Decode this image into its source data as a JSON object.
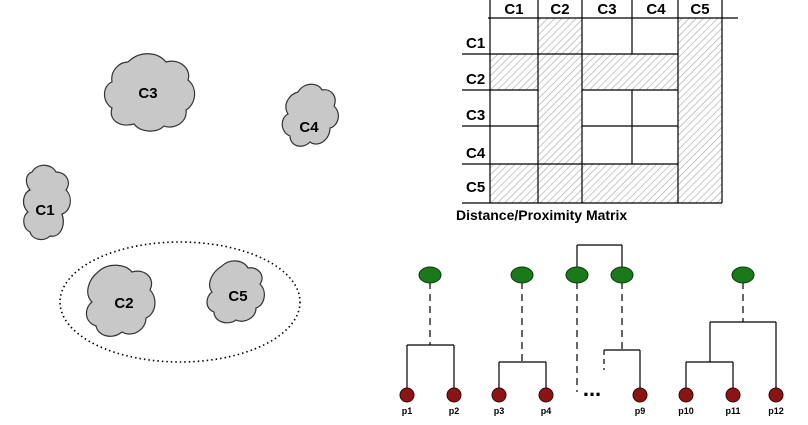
{
  "header_fragment": "",
  "clusters": [
    {
      "id": "c3",
      "label": "C3"
    },
    {
      "id": "c4",
      "label": "C4"
    },
    {
      "id": "c1",
      "label": "C1"
    },
    {
      "id": "c2",
      "label": "C2"
    },
    {
      "id": "c5",
      "label": "C5"
    }
  ],
  "matrix": {
    "col_headers": [
      "C1",
      "C2",
      "C3",
      "C4",
      "C5"
    ],
    "row_headers": [
      "C1",
      "C2",
      "C3",
      "C4",
      "C5"
    ],
    "caption": "Distance/Proximity Matrix"
  },
  "dendrogram": {
    "leaves": [
      "p1",
      "p2",
      "p3",
      "p4",
      "p9",
      "p10",
      "p11",
      "p12"
    ],
    "ellipsis": "..."
  },
  "colors": {
    "cluster_fill": "#c8c8c8",
    "node_top": "#1a7a1a",
    "node_leaf": "#8b1414",
    "hatch": "#b0b0b0"
  }
}
